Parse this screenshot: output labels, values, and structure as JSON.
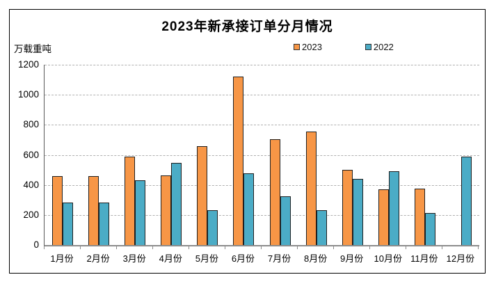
{
  "chart_data": {
    "type": "bar",
    "title": "2023年新承接订单分月情况",
    "ylabel": "万载重吨",
    "xlabel": "",
    "ylim": [
      0,
      1200
    ],
    "ytick_step": 200,
    "grid": "horizontal-dashed",
    "legend_position": "top-center",
    "categories": [
      "1月份",
      "2月份",
      "3月份",
      "4月份",
      "5月份",
      "6月份",
      "7月份",
      "8月份",
      "9月份",
      "10月份",
      "11月份",
      "12月份"
    ],
    "series": [
      {
        "name": "2023",
        "color": "#F79646",
        "values": [
          460,
          460,
          590,
          465,
          660,
          1120,
          705,
          755,
          500,
          370,
          375,
          null
        ]
      },
      {
        "name": "2022",
        "color": "#4BACC6",
        "values": [
          285,
          285,
          430,
          545,
          230,
          475,
          325,
          230,
          440,
          490,
          215,
          590
        ]
      }
    ]
  }
}
